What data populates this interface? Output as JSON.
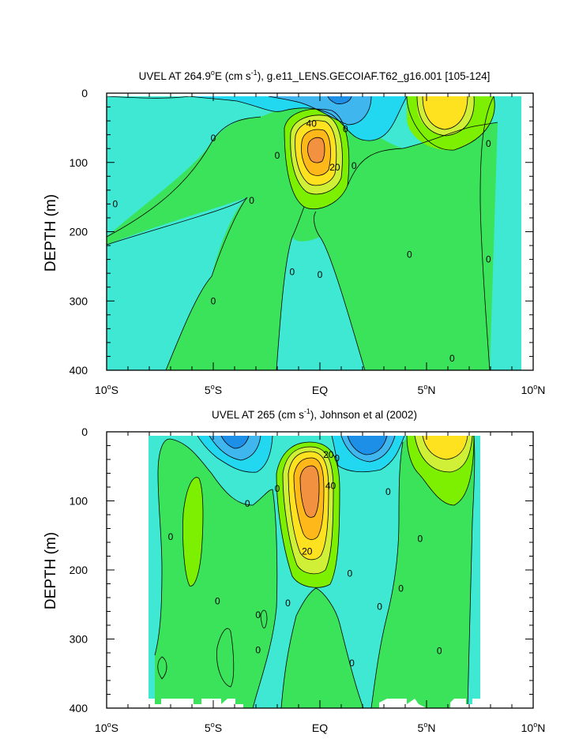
{
  "fill_colors": {
    "neg20": "#1e8fe6",
    "neg10": "#3fb6ee",
    "neg5": "#22d8f0",
    "zero": "#3ee8d2",
    "pos5": "#3ae35a",
    "pos10": "#7cf000",
    "pos20": "#cff036",
    "pos30": "#ffe21f",
    "pos40": "#ffb81a",
    "pos50": "#f29140",
    "line": "#000000"
  },
  "chart_data": [
    {
      "type": "contour",
      "title": "UVEL AT 264.9°E (cm s-1), g.e11_LENS.GECOIAF.T62_g16.001 [105-124]",
      "title_parts": {
        "main": "UVEL AT 264.9",
        "deg": "o",
        "post_deg": "E (cm s",
        "exp": "-1",
        "tail": "), g.e11_LENS.GECOIAF.T62_g16.001 [105-124]"
      },
      "ylabel": "DEPTH (m)",
      "xlim": [
        -10,
        10
      ],
      "ylim": [
        400,
        0
      ],
      "x_ticks": [
        {
          "value": -10,
          "num": "10",
          "deg": "o",
          "hemi": "S"
        },
        {
          "value": -5,
          "num": "5",
          "deg": "o",
          "hemi": "S"
        },
        {
          "value": 0,
          "num": "EQ",
          "deg": "",
          "hemi": ""
        },
        {
          "value": 5,
          "num": "5",
          "deg": "o",
          "hemi": "N"
        },
        {
          "value": 10,
          "num": "10",
          "deg": "o",
          "hemi": "N"
        }
      ],
      "y_ticks": [
        0,
        100,
        200,
        300,
        400
      ],
      "contour_labels": [
        {
          "text": "40",
          "x": -0.4,
          "depth": 44
        },
        {
          "text": "20",
          "x": 0.7,
          "depth": 107
        },
        {
          "text": "0",
          "x": -5.0,
          "depth": 65
        },
        {
          "text": "0",
          "x": -9.6,
          "depth": 160
        },
        {
          "text": "0",
          "x": -2.0,
          "depth": 90
        },
        {
          "text": "0",
          "x": -3.2,
          "depth": 155
        },
        {
          "text": "0",
          "x": 1.2,
          "depth": 52
        },
        {
          "text": "0",
          "x": 1.6,
          "depth": 105
        },
        {
          "text": "0",
          "x": -1.3,
          "depth": 258
        },
        {
          "text": "0",
          "x": 0.0,
          "depth": 262
        },
        {
          "text": "0",
          "x": -5.0,
          "depth": 300
        },
        {
          "text": "0",
          "x": 4.2,
          "depth": 233
        },
        {
          "text": "0",
          "x": 7.9,
          "depth": 73
        },
        {
          "text": "0",
          "x": 7.9,
          "depth": 240
        },
        {
          "text": "0",
          "x": 6.2,
          "depth": 383
        }
      ]
    },
    {
      "type": "contour",
      "title": "UVEL AT 265 (cm s-1), Johnson et al (2002)",
      "title_parts": {
        "main": "UVEL AT 265 (cm s",
        "exp": "-1",
        "tail": "), Johnson et al (2002)"
      },
      "ylabel": "DEPTH (m)",
      "xlim": [
        -10,
        10
      ],
      "ylim": [
        400,
        0
      ],
      "x_ticks": [
        {
          "value": -10,
          "num": "10",
          "deg": "o",
          "hemi": "S"
        },
        {
          "value": -5,
          "num": "5",
          "deg": "o",
          "hemi": "S"
        },
        {
          "value": 0,
          "num": "EQ",
          "deg": "",
          "hemi": ""
        },
        {
          "value": 5,
          "num": "5",
          "deg": "o",
          "hemi": "N"
        },
        {
          "value": 10,
          "num": "10",
          "deg": "o",
          "hemi": "N"
        }
      ],
      "y_ticks": [
        0,
        100,
        200,
        300,
        400
      ],
      "contour_labels": [
        {
          "text": "20",
          "x": 0.4,
          "depth": 33
        },
        {
          "text": "40",
          "x": 0.5,
          "depth": 78
        },
        {
          "text": "20",
          "x": -0.6,
          "depth": 173
        },
        {
          "text": "0",
          "x": 0.8,
          "depth": 38
        },
        {
          "text": "0",
          "x": 8.0,
          "depth": 52
        },
        {
          "text": "0",
          "x": -2.0,
          "depth": 82
        },
        {
          "text": "0",
          "x": -3.4,
          "depth": 104
        },
        {
          "text": "0",
          "x": 3.2,
          "depth": 87
        },
        {
          "text": "0",
          "x": -7.0,
          "depth": 152
        },
        {
          "text": "0",
          "x": 4.7,
          "depth": 155
        },
        {
          "text": "0",
          "x": -4.8,
          "depth": 245
        },
        {
          "text": "0",
          "x": -8.2,
          "depth": 265
        },
        {
          "text": "0",
          "x": -1.5,
          "depth": 248
        },
        {
          "text": "0",
          "x": 1.4,
          "depth": 205
        },
        {
          "text": "0",
          "x": 2.8,
          "depth": 253
        },
        {
          "text": "0",
          "x": 3.8,
          "depth": 227
        },
        {
          "text": "0",
          "x": -2.9,
          "depth": 265
        },
        {
          "text": "0",
          "x": -2.9,
          "depth": 316
        },
        {
          "text": "0",
          "x": 1.5,
          "depth": 335
        },
        {
          "text": "0",
          "x": 5.6,
          "depth": 317
        }
      ]
    }
  ]
}
